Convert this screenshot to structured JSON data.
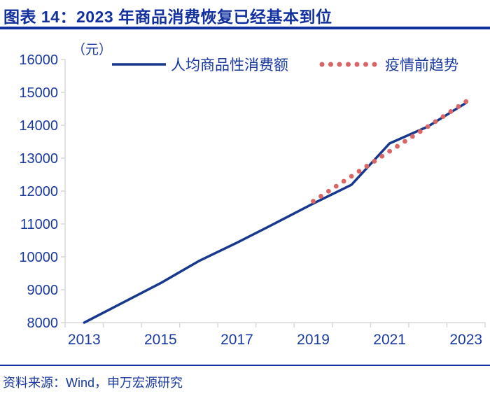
{
  "header": {
    "title": "图表 14：2023 年商品消费恢复已经基本到位"
  },
  "footer": {
    "source": "资料来源：Wind，申万宏源研究"
  },
  "colors": {
    "title_blue": "#12309E",
    "text_blue": "#1A3AA0",
    "line_blue": "#17388C",
    "trend_red": "#D96565",
    "axis_gray": "#D9D9D9"
  },
  "chart_data": {
    "type": "line",
    "title": "",
    "unit_label": "（元）",
    "xlabel": "",
    "ylabel": "",
    "ylim": [
      8000,
      16000
    ],
    "y_ticks": [
      8000,
      9000,
      10000,
      11000,
      12000,
      13000,
      14000,
      15000,
      16000
    ],
    "x_years": [
      2013,
      2014,
      2015,
      2016,
      2017,
      2018,
      2019,
      2020,
      2021,
      2022,
      2023
    ],
    "x_tick_labels": [
      "2013",
      "2015",
      "2017",
      "2019",
      "2021",
      "2023"
    ],
    "grid": false,
    "legend_position": "top",
    "series": [
      {
        "name": "人均商品性消费额",
        "style": "solid",
        "color": "#17388C",
        "x": [
          2013,
          2014,
          2015,
          2016,
          2017,
          2018,
          2019,
          2020,
          2021,
          2022,
          2023
        ],
        "values": [
          8000,
          8600,
          9200,
          9870,
          10430,
          11020,
          11620,
          12190,
          13450,
          13960,
          14680
        ]
      },
      {
        "name": "疫情前趋势",
        "style": "dotted",
        "color": "#D96565",
        "x": [
          2019,
          2020,
          2021,
          2022,
          2023
        ],
        "values": [
          11690,
          12450,
          13210,
          13960,
          14720
        ]
      }
    ]
  }
}
